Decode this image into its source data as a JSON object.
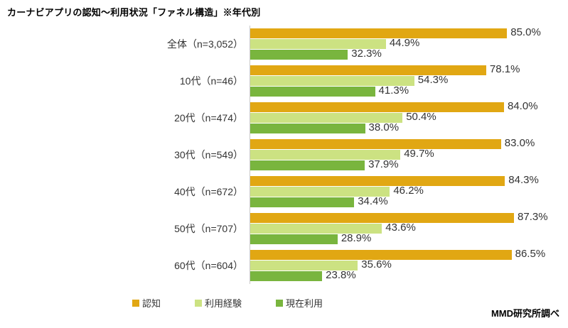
{
  "title": "カーナビアプリの認知～利用状況「ファネル構造」※年代別",
  "source": "MMD研究所調べ",
  "chart_data": {
    "type": "bar",
    "orientation": "horizontal",
    "title": "カーナビアプリの認知～利用状況「ファネル構造」※年代別",
    "categories": [
      "全体（n=3,052）",
      "10代（n=46）",
      "20代（n=474）",
      "30代（n=549）",
      "40代（n=672）",
      "50代（n=707）",
      "60代（n=604）"
    ],
    "series": [
      {
        "name": "認知",
        "color": "#e1a713",
        "values": [
          85.0,
          78.1,
          84.0,
          83.0,
          84.3,
          87.3,
          86.5
        ]
      },
      {
        "name": "利用経験",
        "color": "#cce282",
        "values": [
          44.9,
          54.3,
          50.4,
          49.7,
          46.2,
          43.6,
          35.6
        ]
      },
      {
        "name": "現在利用",
        "color": "#79b53e",
        "values": [
          32.3,
          41.3,
          38.0,
          37.9,
          34.4,
          28.9,
          23.8
        ]
      }
    ],
    "xlim": [
      0,
      100
    ],
    "value_suffix": "%",
    "value_decimals": 1,
    "grid": false,
    "legend_position": "bottom",
    "value_label_color": "#333333",
    "axis_line_color": "#c9c9c9"
  }
}
